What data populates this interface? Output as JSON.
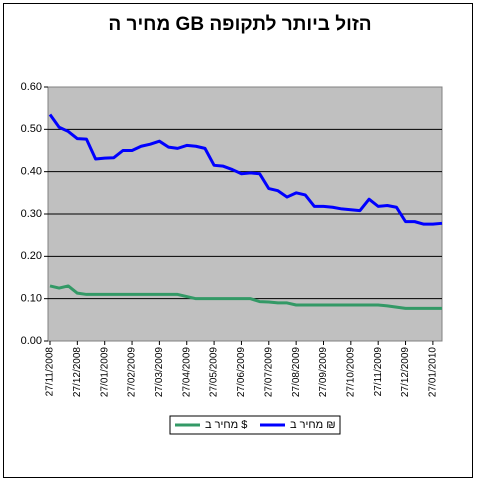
{
  "chart_data": {
    "type": "line",
    "title": "מחיר ה GB הזול ביותר לתקופה",
    "categories": [
      "27/11/2008",
      null,
      null,
      "27/12/2008",
      null,
      null,
      "27/01/2009",
      null,
      null,
      "27/02/2009",
      null,
      null,
      "27/03/2009",
      null,
      null,
      "27/04/2009",
      null,
      null,
      "27/05/2009",
      null,
      null,
      "27/06/2009",
      null,
      null,
      "27/07/2009",
      null,
      null,
      "27/08/2009",
      null,
      null,
      "27/09/2009",
      null,
      null,
      "27/10/2009",
      null,
      null,
      "27/11/2009",
      null,
      null,
      "27/12/2009",
      null,
      null,
      "27/01/2010",
      null
    ],
    "series": [
      {
        "name": "מחיר ב ₪",
        "color": "#0000ff",
        "values": [
          0.535,
          0.505,
          0.495,
          0.478,
          0.477,
          0.43,
          0.432,
          0.433,
          0.45,
          0.45,
          0.46,
          0.465,
          0.472,
          0.458,
          0.455,
          0.462,
          0.46,
          0.455,
          0.415,
          0.413,
          0.405,
          0.395,
          0.397,
          0.395,
          0.36,
          0.355,
          0.34,
          0.35,
          0.345,
          0.318,
          0.318,
          0.316,
          0.312,
          0.31,
          0.308,
          0.335,
          0.318,
          0.32,
          0.316,
          0.282,
          0.282,
          0.276,
          0.276,
          0.278
        ]
      },
      {
        "name": "מחיר ב $",
        "color": "#339966",
        "values": [
          0.13,
          0.125,
          0.13,
          0.113,
          0.11,
          0.11,
          0.11,
          0.11,
          0.11,
          0.11,
          0.11,
          0.11,
          0.11,
          0.11,
          0.11,
          0.105,
          0.1,
          0.1,
          0.1,
          0.1,
          0.1,
          0.1,
          0.1,
          0.093,
          0.092,
          0.09,
          0.09,
          0.085,
          0.085,
          0.085,
          0.085,
          0.085,
          0.085,
          0.085,
          0.085,
          0.085,
          0.085,
          0.083,
          0.08,
          0.077,
          0.077,
          0.077,
          0.077,
          0.077
        ]
      }
    ],
    "ylim": [
      0,
      0.6
    ],
    "yticks": [
      {
        "value": 0,
        "label": "0.00"
      },
      {
        "value": 0.1,
        "label": "0.10"
      },
      {
        "value": 0.2,
        "label": "0.20"
      },
      {
        "value": 0.3,
        "label": "0.30"
      },
      {
        "value": 0.4,
        "label": "0.40"
      },
      {
        "value": 0.5,
        "label": "0.50"
      },
      {
        "value": 0.6,
        "label": "0.60"
      }
    ],
    "grid": true
  }
}
